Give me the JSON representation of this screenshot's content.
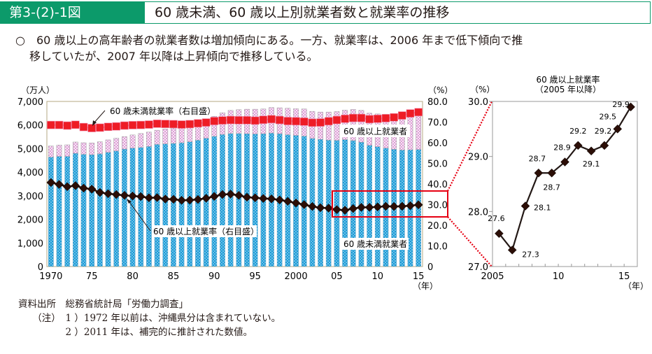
{
  "header": {
    "figure_number": "第3-(2)-1図",
    "title": "60 歳未満、60 歳以上別就業者数と就業率の推移"
  },
  "lead": {
    "bullet": "○",
    "line1": "60 歳以上の高年齢者の就業者数は増加傾向にある。一方、就業率は、2006 年まで低下傾向で推",
    "line2": "移していたが、2007 年以降は上昇傾向で推移している。"
  },
  "notes": {
    "source_label": "資料出所",
    "source": "総務省統計局「労働力調査」",
    "note_label": "（注）",
    "note1": "1 ）1972 年以前は、沖縄県分は含まれていない。",
    "note2": "2 ）2011 年は、補完的に推計された数値。"
  },
  "colors": {
    "under60_bar": "#1a9ad6",
    "over60_bar": "#d98fd0",
    "under60_rate": "#ee1c25",
    "over60_rate": "#2b0e07",
    "highlight_box": "#e60012",
    "header_green": "#0c9a6a"
  },
  "chart_data": [
    {
      "type": "bar",
      "stacked": true,
      "title": "",
      "ylabel_left": "（万人）",
      "ylabel_right": "（%）",
      "xlabel": "（年）",
      "ylim_left": [
        0,
        7000
      ],
      "ylim_right": [
        0,
        80
      ],
      "left_ticks": [
        "0",
        "1,000",
        "2,000",
        "3,000",
        "4,000",
        "5,000",
        "6,000",
        "7,000"
      ],
      "right_ticks": [
        "0",
        "10.0",
        "20.0",
        "30.0",
        "40.0",
        "50.0",
        "60.0",
        "70.0",
        "80.0"
      ],
      "x_tick_labels": [
        {
          "year": 1970,
          "label": "1970"
        },
        {
          "year": 1975,
          "label": "75"
        },
        {
          "year": 1980,
          "label": "80"
        },
        {
          "year": 1985,
          "label": "85"
        },
        {
          "year": 1990,
          "label": "90"
        },
        {
          "year": 1995,
          "label": "95"
        },
        {
          "year": 2000,
          "label": "2000"
        },
        {
          "year": 2005,
          "label": "05"
        },
        {
          "year": 2010,
          "label": "10"
        },
        {
          "year": 2015,
          "label": "15"
        }
      ],
      "years": [
        1970,
        1971,
        1972,
        1973,
        1974,
        1975,
        1976,
        1977,
        1978,
        1979,
        1980,
        1981,
        1982,
        1983,
        1984,
        1985,
        1986,
        1987,
        1988,
        1989,
        1990,
        1991,
        1992,
        1993,
        1994,
        1995,
        1996,
        1997,
        1998,
        1999,
        2000,
        2001,
        2002,
        2003,
        2004,
        2005,
        2006,
        2007,
        2008,
        2009,
        2010,
        2011,
        2012,
        2013,
        2014,
        2015
      ],
      "series": [
        {
          "name": "60 歳未満就業者",
          "axis": "left",
          "kind": "bar",
          "values": [
            4640,
            4670,
            4670,
            4800,
            4760,
            4740,
            4780,
            4840,
            4900,
            4980,
            5020,
            5050,
            5090,
            5180,
            5200,
            5220,
            5250,
            5290,
            5360,
            5440,
            5520,
            5600,
            5640,
            5640,
            5630,
            5620,
            5630,
            5660,
            5630,
            5590,
            5560,
            5530,
            5430,
            5390,
            5360,
            5350,
            5380,
            5340,
            5270,
            5140,
            5080,
            5020,
            4970,
            4940,
            4950,
            4960
          ]
        },
        {
          "name": "60 歳以上就業者",
          "axis": "left",
          "kind": "bar",
          "values": [
            470,
            480,
            490,
            480,
            490,
            500,
            510,
            530,
            540,
            530,
            560,
            590,
            610,
            600,
            630,
            640,
            650,
            700,
            740,
            780,
            850,
            920,
            980,
            1010,
            1040,
            1050,
            1050,
            1080,
            1100,
            1120,
            1130,
            1150,
            1150,
            1160,
            1190,
            1220,
            1250,
            1320,
            1350,
            1360,
            1390,
            1440,
            1490,
            1540,
            1590,
            1640
          ]
        },
        {
          "name": "60 歳未満就業率（右目盛）",
          "axis": "right",
          "kind": "line",
          "values": [
            68.6,
            68.6,
            68.3,
            68.7,
            67.6,
            67.1,
            67.3,
            67.7,
            67.9,
            68.3,
            68.5,
            68.6,
            68.8,
            69.2,
            69.1,
            69.0,
            68.8,
            69.0,
            69.4,
            69.8,
            70.5,
            70.8,
            71.0,
            70.9,
            70.9,
            70.7,
            71.1,
            71.4,
            71.0,
            70.5,
            70.4,
            70.2,
            69.7,
            69.8,
            70.4,
            71.0,
            71.6,
            72.0,
            72.0,
            71.4,
            71.6,
            71.9,
            72.3,
            73.2,
            74.2,
            74.8
          ]
        },
        {
          "name": "60 歳以上就業率（右目盛）",
          "axis": "right",
          "kind": "line",
          "values": [
            40.7,
            39.8,
            38.7,
            39.2,
            38.0,
            37.5,
            35.9,
            35.3,
            34.9,
            34.5,
            34.2,
            33.9,
            33.3,
            33.4,
            32.7,
            32.6,
            32.1,
            32.2,
            32.5,
            33.1,
            34.0,
            34.9,
            35.1,
            34.5,
            33.6,
            33.3,
            33.0,
            32.8,
            32.3,
            31.6,
            30.8,
            30.0,
            29.1,
            28.5,
            28.3,
            27.6,
            27.3,
            28.1,
            28.7,
            28.7,
            28.9,
            29.2,
            29.1,
            29.2,
            29.5,
            29.9
          ]
        }
      ],
      "annotations": [
        {
          "text": "60 歳未満就業率（右目盛）",
          "series": "60 歳未満就業率（右目盛）"
        },
        {
          "text": "60 歳以上就業者",
          "series": "60 歳以上就業者"
        },
        {
          "text": "60 歳以上就業率（右目盛）",
          "series": "60 歳以上就業率（右目盛）"
        },
        {
          "text": "60 歳未満就業者",
          "series": "60 歳未満就業者"
        }
      ],
      "highlight": {
        "from_year": 2005,
        "to_year": 2015,
        "y_range": [
          25,
          37
        ]
      }
    },
    {
      "type": "line",
      "title": "60 歳以上就業率",
      "subtitle": "（2005 年以降）",
      "ylabel": "（%）",
      "xlabel": "（年）",
      "ylim": [
        27.0,
        30.0
      ],
      "y_ticks": [
        "27.0",
        "28.0",
        "29.0",
        "30.0"
      ],
      "x_tick_labels": [
        {
          "year": 2005,
          "label": "2005"
        },
        {
          "year": 2010,
          "label": "10"
        },
        {
          "year": 2015,
          "label": "15"
        }
      ],
      "x": [
        2005,
        2006,
        2007,
        2008,
        2009,
        2010,
        2011,
        2012,
        2013,
        2014,
        2015
      ],
      "values": [
        27.6,
        27.3,
        28.1,
        28.7,
        28.7,
        28.9,
        29.2,
        29.1,
        29.2,
        29.5,
        29.9
      ],
      "data_labels": [
        "27.6",
        "27.3",
        "28.1",
        "28.7",
        "28.7",
        "28.9",
        "29.2",
        "29.1",
        "29.2",
        "29.5",
        "29.9"
      ]
    }
  ]
}
